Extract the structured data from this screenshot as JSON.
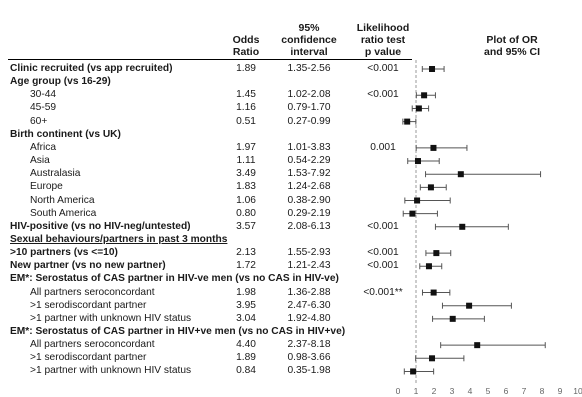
{
  "headers": {
    "or": [
      "Odds",
      "Ratio"
    ],
    "ci": [
      "95%",
      "confidence",
      "interval"
    ],
    "pv": [
      "Likelihood",
      "ratio test",
      "p value"
    ],
    "plot": [
      "Plot of OR",
      "and 95% CI"
    ]
  },
  "rows": [
    {
      "label": "Clinic recruited (vs app recruited)",
      "style": "bold",
      "or": "1.89",
      "ci": "1.35-2.56",
      "p": "<0.001",
      "est": 1.89,
      "lo": 1.35,
      "hi": 2.56
    },
    {
      "label": "Age group (vs 16-29)",
      "style": "bold"
    },
    {
      "label": "30-44",
      "style": "indent",
      "or": "1.45",
      "ci": "1.02-2.08",
      "p": "<0.001",
      "est": 1.45,
      "lo": 1.02,
      "hi": 2.08
    },
    {
      "label": "45-59",
      "style": "indent",
      "or": "1.16",
      "ci": "0.79-1.70",
      "est": 1.16,
      "lo": 0.79,
      "hi": 1.7
    },
    {
      "label": "60+",
      "style": "indent",
      "or": "0.51",
      "ci": "0.27-0.99",
      "est": 0.51,
      "lo": 0.27,
      "hi": 0.99
    },
    {
      "label": "Birth continent (vs UK)",
      "style": "bold"
    },
    {
      "label": "Africa",
      "style": "indent",
      "or": "1.97",
      "ci": "1.01-3.83",
      "p": "0.001",
      "est": 1.97,
      "lo": 1.01,
      "hi": 3.83
    },
    {
      "label": "Asia",
      "style": "indent",
      "or": "1.11",
      "ci": "0.54-2.29",
      "est": 1.11,
      "lo": 0.54,
      "hi": 2.29
    },
    {
      "label": "Australasia",
      "style": "indent",
      "or": "3.49",
      "ci": "1.53-7.92",
      "est": 3.49,
      "lo": 1.53,
      "hi": 7.92
    },
    {
      "label": "Europe",
      "style": "indent",
      "or": "1.83",
      "ci": "1.24-2.68",
      "est": 1.83,
      "lo": 1.24,
      "hi": 2.68
    },
    {
      "label": "North America",
      "style": "indent",
      "or": "1.06",
      "ci": "0.38-2.90",
      "est": 1.06,
      "lo": 0.38,
      "hi": 2.9
    },
    {
      "label": "South America",
      "style": "indent",
      "or": "0.80",
      "ci": "0.29-2.19",
      "est": 0.8,
      "lo": 0.29,
      "hi": 2.19
    },
    {
      "label": "HIV-positive (vs no HIV-neg/untested)",
      "style": "bold",
      "or": "3.57",
      "ci": "2.08-6.13",
      "p": "<0.001",
      "est": 3.57,
      "lo": 2.08,
      "hi": 6.13
    },
    {
      "label": "Sexual behaviours/partners in past 3 months",
      "style": "section"
    },
    {
      "label": ">10 partners (vs <=10)",
      "style": "bold",
      "or": "2.13",
      "ci": "1.55-2.93",
      "p": "<0.001",
      "est": 2.13,
      "lo": 1.55,
      "hi": 2.93
    },
    {
      "label": "New partner (vs no new partner)",
      "style": "bold",
      "or": "1.72",
      "ci": "1.21-2.43",
      "p": "<0.001",
      "est": 1.72,
      "lo": 1.21,
      "hi": 2.43
    },
    {
      "label": "EM*: Serostatus of CAS partner in HIV-ve men (vs no CAS in HIV-ve)",
      "style": "bold"
    },
    {
      "label": "All partners seroconcordant",
      "style": "indent",
      "or": "1.98",
      "ci": "1.36-2.88",
      "p": "<0.001**",
      "est": 1.98,
      "lo": 1.36,
      "hi": 2.88
    },
    {
      "label": ">1 serodiscordant partner",
      "style": "indent",
      "or": "3.95",
      "ci": "2.47-6.30",
      "est": 3.95,
      "lo": 2.47,
      "hi": 6.3
    },
    {
      "label": ">1 partner with unknown HIV status",
      "style": "indent",
      "or": "3.04",
      "ci": "1.92-4.80",
      "est": 3.04,
      "lo": 1.92,
      "hi": 4.8
    },
    {
      "label": "EM*: Serostatus of CAS partner in HIV+ve men (vs no CAS in HIV+ve)",
      "style": "bold"
    },
    {
      "label": "All partners seroconcordant",
      "style": "indent",
      "or": "4.40",
      "ci": "2.37-8.18",
      "est": 4.4,
      "lo": 2.37,
      "hi": 8.18
    },
    {
      "label": ">1 serodiscordant partner",
      "style": "indent",
      "or": "1.89",
      "ci": "0.98-3.66",
      "est": 1.89,
      "lo": 0.98,
      "hi": 3.66
    },
    {
      "label": ">1 partner with unknown HIV status",
      "style": "indent",
      "or": "0.84",
      "ci": "0.35-1.98",
      "est": 0.84,
      "lo": 0.35,
      "hi": 1.98
    }
  ],
  "chart_data": {
    "type": "forest",
    "xlim": [
      0,
      10
    ],
    "xticks": [
      0,
      1,
      2,
      3,
      4,
      5,
      6,
      7,
      8,
      9,
      10
    ],
    "reference_line": 1,
    "title": "Plot of OR and 95% CI",
    "series": [
      {
        "points": [
          {
            "label": "Clinic recruited (vs app recruited)",
            "est": 1.89,
            "lo": 1.35,
            "hi": 2.56
          },
          {
            "label": "30-44",
            "est": 1.45,
            "lo": 1.02,
            "hi": 2.08
          },
          {
            "label": "45-59",
            "est": 1.16,
            "lo": 0.79,
            "hi": 1.7
          },
          {
            "label": "60+",
            "est": 0.51,
            "lo": 0.27,
            "hi": 0.99
          },
          {
            "label": "Africa",
            "est": 1.97,
            "lo": 1.01,
            "hi": 3.83
          },
          {
            "label": "Asia",
            "est": 1.11,
            "lo": 0.54,
            "hi": 2.29
          },
          {
            "label": "Australasia",
            "est": 3.49,
            "lo": 1.53,
            "hi": 7.92
          },
          {
            "label": "Europe",
            "est": 1.83,
            "lo": 1.24,
            "hi": 2.68
          },
          {
            "label": "North America",
            "est": 1.06,
            "lo": 0.38,
            "hi": 2.9
          },
          {
            "label": "South America",
            "est": 0.8,
            "lo": 0.29,
            "hi": 2.19
          },
          {
            "label": "HIV-positive (vs no HIV-neg/untested)",
            "est": 3.57,
            "lo": 2.08,
            "hi": 6.13
          },
          {
            "label": ">10 partners (vs <=10)",
            "est": 2.13,
            "lo": 1.55,
            "hi": 2.93
          },
          {
            "label": "New partner (vs no new partner)",
            "est": 1.72,
            "lo": 1.21,
            "hi": 2.43
          },
          {
            "label": "All partners seroconcordant (HIV-ve)",
            "est": 1.98,
            "lo": 1.36,
            "hi": 2.88
          },
          {
            "label": ">1 serodiscordant partner (HIV-ve)",
            "est": 3.95,
            "lo": 2.47,
            "hi": 6.3
          },
          {
            "label": ">1 partner with unknown HIV status (HIV-ve)",
            "est": 3.04,
            "lo": 1.92,
            "hi": 4.8
          },
          {
            "label": "All partners seroconcordant (HIV+ve)",
            "est": 4.4,
            "lo": 2.37,
            "hi": 8.18
          },
          {
            "label": ">1 serodiscordant partner (HIV+ve)",
            "est": 1.89,
            "lo": 0.98,
            "hi": 3.66
          },
          {
            "label": ">1 partner with unknown HIV status (HIV+ve)",
            "est": 0.84,
            "lo": 0.35,
            "hi": 1.98
          }
        ]
      }
    ]
  }
}
